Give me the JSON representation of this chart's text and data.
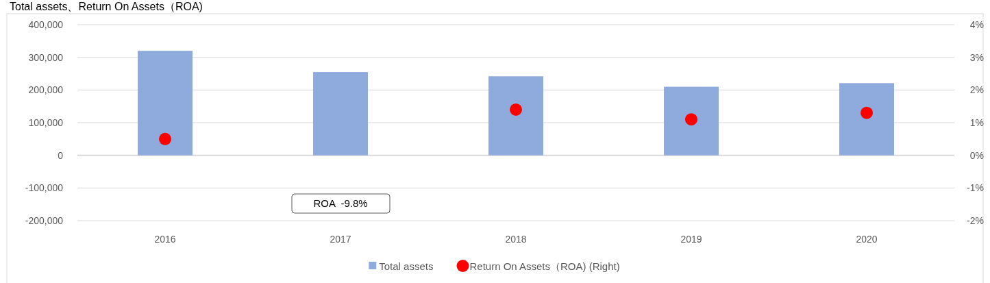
{
  "chart_data": {
    "type": "bar",
    "title": "Total assets、Return On Assets（ROA)",
    "categories": [
      "2016",
      "2017",
      "2018",
      "2019",
      "2020"
    ],
    "series": [
      {
        "name": "Total assets",
        "color": "#8faadc",
        "values": [
          320000,
          255000,
          242000,
          210000,
          221000
        ]
      },
      {
        "name": "Return On Assets（ROA) (Right)",
        "type": "scatter",
        "axis": "y2",
        "color": "#ff0000",
        "marker": "circle",
        "values": [
          0.5,
          null,
          1.4,
          1.1,
          1.3
        ]
      }
    ],
    "ylim": [
      -200000,
      400000
    ],
    "yticks": [
      {
        "value": -200000,
        "label": "-200,000"
      },
      {
        "value": -100000,
        "label": "-100,000"
      },
      0,
      {
        "value": 100000,
        "label": "100,000"
      },
      {
        "value": 200000,
        "label": "200,000"
      },
      {
        "value": 300000,
        "label": "300,000"
      },
      {
        "value": 400000,
        "label": "400,000"
      }
    ],
    "y2lim": [
      -2,
      4
    ],
    "y2ticks": [
      {
        "value": -2,
        "label": "-2%"
      },
      {
        "value": -1,
        "label": "-1%"
      },
      {
        "value": 0,
        "label": "0%"
      },
      {
        "value": 1,
        "label": "1%"
      },
      {
        "value": 2,
        "label": "2%"
      },
      {
        "value": 3,
        "label": "3%"
      },
      {
        "value": 4,
        "label": "4%"
      }
    ],
    "annotations": [
      "ROA  -9.8%"
    ],
    "grid": "y",
    "legend": "bottom"
  }
}
